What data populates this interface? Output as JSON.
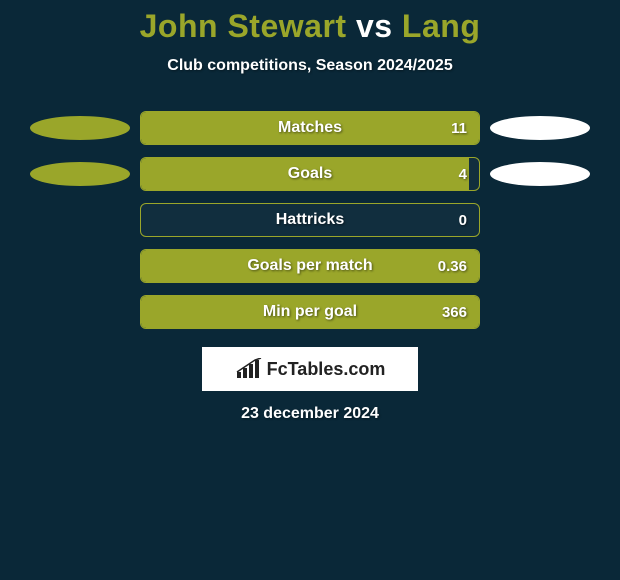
{
  "title": {
    "player1": "John Stewart",
    "vs": "vs",
    "player2": "Lang",
    "player1_color": "#9aa62a",
    "vs_color": "#ffffff",
    "player2_color": "#9aa62a"
  },
  "subtitle": "Club competitions, Season 2024/2025",
  "background_color": "#0a2838",
  "ellipse_left_color": "#9aa62a",
  "ellipse_right_color": "#ffffff",
  "bar_track_border": "#9aa62a",
  "bar_fill_color": "#9aa62a",
  "rows": [
    {
      "label": "Matches",
      "value": "11",
      "fill_pct": 100,
      "show_ellipses": true
    },
    {
      "label": "Goals",
      "value": "4",
      "fill_pct": 97,
      "show_ellipses": true
    },
    {
      "label": "Hattricks",
      "value": "0",
      "fill_pct": 0,
      "show_ellipses": false
    },
    {
      "label": "Goals per match",
      "value": "0.36",
      "fill_pct": 100,
      "show_ellipses": false
    },
    {
      "label": "Min per goal",
      "value": "366",
      "fill_pct": 100,
      "show_ellipses": false
    }
  ],
  "brand": "FcTables.com",
  "date": "23 december 2024"
}
